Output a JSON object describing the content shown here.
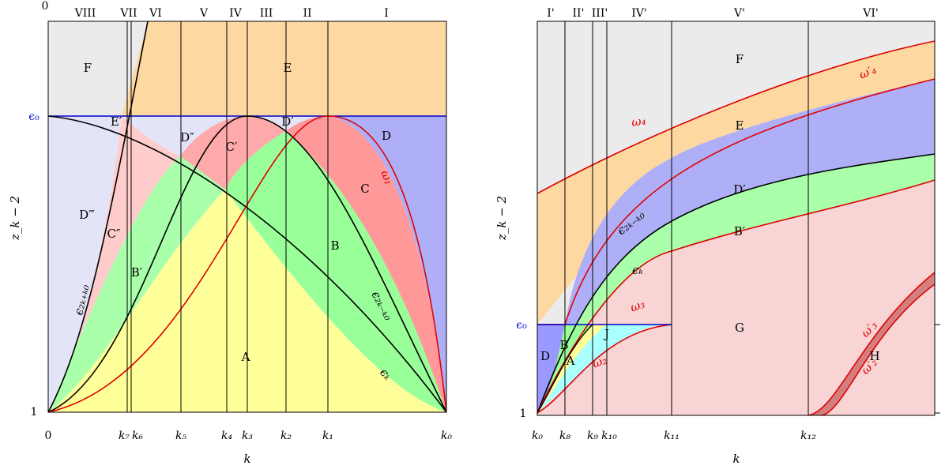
{
  "left": {
    "corner_label": "0",
    "ylabel": "z_k − 2",
    "xlabel": "k",
    "y_ticks": {
      "eps0": "ϵ₀",
      "one": "1"
    },
    "x_ticks": {
      "zero": "0",
      "k7": "k₇",
      "k6": "k₆",
      "k5": "k₅",
      "k4": "k₄",
      "k3": "k₃",
      "k2": "k₂",
      "k1": "k₁",
      "k0": "k₀"
    },
    "regions_top": [
      "VIII",
      "VII",
      "VI",
      "V",
      "IV",
      "III",
      "II",
      "I"
    ],
    "area_labels": {
      "F": "F",
      "E": "E",
      "Eprime": "E′",
      "Dprime": "D′",
      "Ddouble": "D″",
      "D": "D",
      "Cprime": "C′",
      "C": "C",
      "Dtriple": "D‴",
      "Cdouble": "C″",
      "Bprime": "B′",
      "B": "B",
      "A": "A"
    },
    "curve_labels": {
      "omega1": "ω₁",
      "eps2k_minus_k0": "ϵ₂ₖ₋ₖ₀",
      "eps2k_plus_k0": "ϵ₂ₖ₊ₖ₀",
      "epsk": "ϵₖ"
    }
  },
  "right": {
    "ylabel": "z_k − 2",
    "xlabel": "k",
    "y_ticks": {
      "eps0": "ϵ₀",
      "one": "1"
    },
    "x_ticks": {
      "k0": "k₀",
      "k8": "k₈",
      "k9": "k₉",
      "k10": "k₁₀",
      "k11": "k₁₁",
      "k12": "k₁₂"
    },
    "regions_top": [
      "I'",
      "II'",
      "III'",
      "IV'",
      "V'",
      "VI'"
    ],
    "area_labels": {
      "F": "F",
      "E": "E",
      "Dprime": "D′",
      "Bprime": "B′",
      "G": "G",
      "H": "H",
      "D": "D",
      "B": "B",
      "A": "A",
      "J": "J"
    },
    "curve_labels": {
      "omega4": "ω₄",
      "omega4p": "ω′₄",
      "eps2k_minus_k0": "ϵ₂ₖ₋ₖ₀",
      "epsk": "ϵₖ",
      "omega3": "ω₃",
      "omega2": "ω₂",
      "omega3p": "ω′₃",
      "omega2p": "ω′₂"
    }
  },
  "colors": {
    "F": "#ebebeb",
    "E": "#fdd8a0",
    "D": "#afaff8",
    "C": "#ff9999",
    "Cprime": "#ffaaaa",
    "Dlight": "#e4e4f8",
    "Cpink": "#ffcccc",
    "B": "#99ff99",
    "Blight": "#aaffaa",
    "A": "#ffff99",
    "G": "#f8d4d4",
    "J": "#aaffff",
    "Ddark": "#9999ff",
    "H": "#d47f7f",
    "red": "#e00000",
    "blue": "#0000cc"
  }
}
